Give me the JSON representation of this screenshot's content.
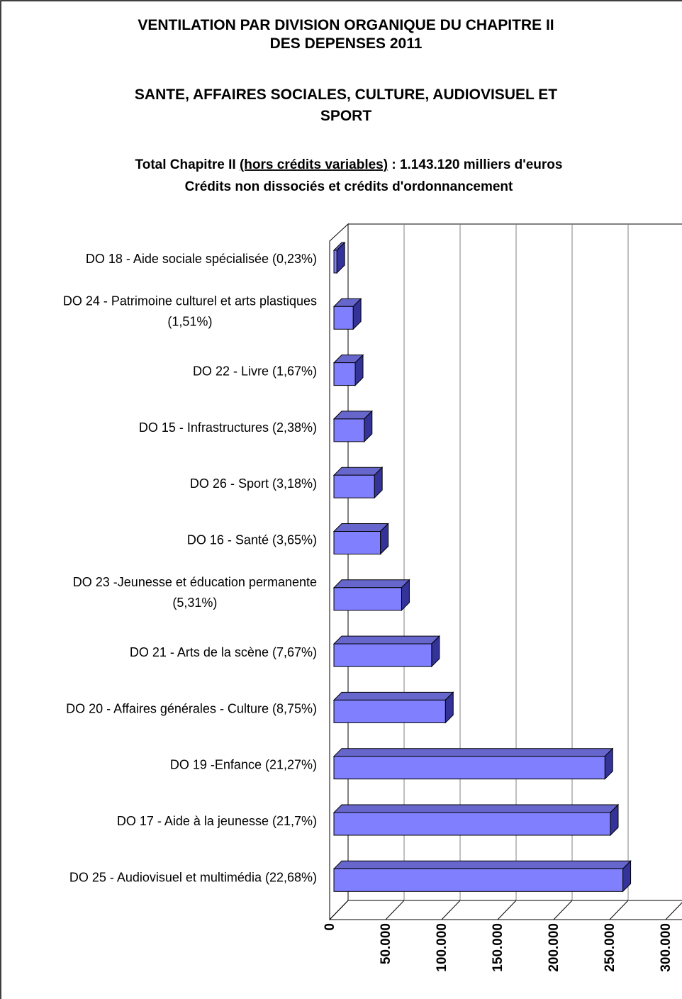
{
  "chart_data": {
    "type": "bar3d_horizontal",
    "title": "VENTILATION PAR DIVISION ORGANIQUE DU CHAPITRE II\nDES DEPENSES 2011",
    "subtitle": "SANTE, AFFAIRES SOCIALES, CULTURE, AUDIOVISUEL ET\nSPORT",
    "note_parts": [
      "Total Chapitre II ",
      "(hors crédits variables)",
      " : 1.143.120 milliers d'euros"
    ],
    "note_line2": "Crédits non dissociés et crédits d'ordonnancement",
    "categories": [
      "DO 18 - Aide sociale spécialisée (0,23%)",
      "DO 24 - Patrimoine culturel et arts plastiques\n(1,51%)",
      "DO 22 - Livre (1,67%)",
      "DO 15 - Infrastructures (2,38%)",
      "DO 26 - Sport (3,18%)",
      "DO 16 - Santé (3,65%)",
      "DO 23 -Jeunesse et éducation permanente\n(5,31%)",
      "DO 21 - Arts de la scène (7,67%)",
      "DO 20 - Affaires générales - Culture (8,75%)",
      "DO 19 -Enfance (21,27%)",
      "DO 17 - Aide à la jeunesse (21,7%)",
      "DO 25 - Audiovisuel et multimédia (22,68%)"
    ],
    "values": [
      2629,
      17261,
      19090,
      27206,
      36351,
      41724,
      60700,
      87677,
      100023,
      243142,
      248057,
      259260
    ],
    "color": "#8080ff",
    "xlim": [
      0,
      300000
    ],
    "xticks": [
      0,
      {
        "value": 50000,
        "label": "50.000"
      },
      {
        "value": 100000,
        "label": "100.000"
      },
      {
        "value": 150000,
        "label": "150.000"
      },
      {
        "value": 200000,
        "label": "200.000"
      },
      {
        "value": 250000,
        "label": "250.000"
      },
      {
        "value": 300000,
        "label": "300.000"
      }
    ],
    "grid": true
  }
}
